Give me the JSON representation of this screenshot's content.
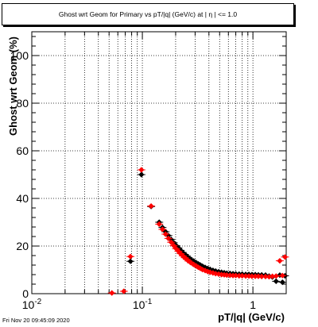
{
  "chart_data": {
    "type": "scatter",
    "title": "Ghost wrt Geom for Primary vs pT/|q| (GeV/c) at |  η  | <= 1.0",
    "xlabel": "pT/|q| (GeV/c)",
    "ylabel": "Ghost wrt Geom (%)",
    "xscale": "log",
    "xlim": [
      0.01,
      2.0
    ],
    "ylim": [
      0,
      110
    ],
    "grid": true,
    "x_tick_labels": [
      {
        "x": 0.01,
        "base": "10",
        "exp": "-2"
      },
      {
        "x": 0.1,
        "base": "10",
        "exp": "-1"
      },
      {
        "x": 1,
        "base": "1",
        "exp": ""
      }
    ],
    "y_tick_labels": [
      "0",
      "20",
      "40",
      "60",
      "80",
      "100"
    ],
    "series": [
      {
        "color": "#000000",
        "marker": "diamond",
        "points": [
          [
            0.078,
            13.6
          ],
          [
            0.098,
            50.0
          ],
          [
            0.12,
            36.6
          ],
          [
            0.142,
            30.0
          ],
          [
            0.152,
            27.8
          ],
          [
            0.162,
            26.0
          ],
          [
            0.172,
            24.4
          ],
          [
            0.182,
            22.8
          ],
          [
            0.192,
            21.4
          ],
          [
            0.202,
            20.2
          ],
          [
            0.212,
            19.2
          ],
          [
            0.222,
            18.2
          ],
          [
            0.232,
            17.3
          ],
          [
            0.242,
            16.5
          ],
          [
            0.252,
            15.8
          ],
          [
            0.262,
            15.1
          ],
          [
            0.275,
            14.4
          ],
          [
            0.29,
            13.7
          ],
          [
            0.305,
            13.1
          ],
          [
            0.32,
            12.5
          ],
          [
            0.335,
            12.0
          ],
          [
            0.35,
            11.5
          ],
          [
            0.37,
            11.0
          ],
          [
            0.39,
            10.6
          ],
          [
            0.41,
            10.2
          ],
          [
            0.435,
            9.8
          ],
          [
            0.46,
            9.5
          ],
          [
            0.49,
            9.2
          ],
          [
            0.52,
            9.0
          ],
          [
            0.55,
            8.8
          ],
          [
            0.58,
            8.6
          ],
          [
            0.62,
            8.5
          ],
          [
            0.66,
            8.4
          ],
          [
            0.7,
            8.3
          ],
          [
            0.75,
            8.2
          ],
          [
            0.8,
            8.2
          ],
          [
            0.86,
            8.1
          ],
          [
            0.92,
            8.1
          ],
          [
            0.98,
            8.0
          ],
          [
            1.05,
            8.0
          ],
          [
            1.12,
            7.9
          ],
          [
            1.2,
            7.9
          ],
          [
            1.3,
            7.8
          ],
          [
            1.4,
            7.4
          ],
          [
            1.5,
            7.0
          ],
          [
            1.62,
            5.2
          ],
          [
            1.75,
            7.8
          ],
          [
            1.85,
            4.8
          ],
          [
            1.95,
            7.5
          ]
        ]
      },
      {
        "color": "#ff0000",
        "marker": "diamond",
        "points": [
          [
            0.053,
            0.3
          ],
          [
            0.068,
            1.0
          ],
          [
            0.078,
            15.6
          ],
          [
            0.098,
            52.0
          ],
          [
            0.12,
            36.8
          ],
          [
            0.142,
            29.2
          ],
          [
            0.152,
            27.0
          ],
          [
            0.162,
            25.0
          ],
          [
            0.172,
            23.2
          ],
          [
            0.182,
            21.6
          ],
          [
            0.192,
            20.2
          ],
          [
            0.202,
            18.9
          ],
          [
            0.212,
            17.8
          ],
          [
            0.222,
            16.8
          ],
          [
            0.232,
            15.9
          ],
          [
            0.242,
            15.1
          ],
          [
            0.252,
            14.4
          ],
          [
            0.262,
            13.7
          ],
          [
            0.275,
            13.0
          ],
          [
            0.29,
            12.3
          ],
          [
            0.305,
            11.7
          ],
          [
            0.32,
            11.1
          ],
          [
            0.335,
            10.6
          ],
          [
            0.35,
            10.1
          ],
          [
            0.37,
            9.7
          ],
          [
            0.39,
            9.3
          ],
          [
            0.41,
            9.0
          ],
          [
            0.435,
            8.7
          ],
          [
            0.46,
            8.4
          ],
          [
            0.49,
            8.2
          ],
          [
            0.52,
            8.0
          ],
          [
            0.55,
            7.9
          ],
          [
            0.58,
            7.8
          ],
          [
            0.62,
            7.7
          ],
          [
            0.66,
            7.6
          ],
          [
            0.7,
            7.6
          ],
          [
            0.75,
            7.5
          ],
          [
            0.8,
            7.5
          ],
          [
            0.86,
            7.4
          ],
          [
            0.92,
            7.4
          ],
          [
            0.98,
            7.3
          ],
          [
            1.05,
            7.3
          ],
          [
            1.12,
            7.3
          ],
          [
            1.2,
            7.2
          ],
          [
            1.3,
            7.2
          ],
          [
            1.4,
            7.1
          ],
          [
            1.5,
            7.3
          ],
          [
            1.62,
            7.4
          ],
          [
            1.75,
            13.8
          ],
          [
            1.85,
            7.6
          ],
          [
            1.95,
            15.4
          ]
        ]
      }
    ]
  },
  "footer": {
    "timestamp": "Fri Nov 20 09:45:09 2020"
  }
}
